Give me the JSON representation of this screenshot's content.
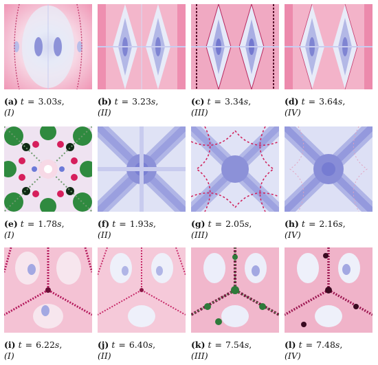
{
  "figures": [
    {
      "label": "(a)",
      "time": "3.03",
      "phase": "(I)",
      "scheme": "pink-radial"
    },
    {
      "label": "(b)",
      "time": "3.23",
      "phase": "(II)",
      "scheme": "pink-diamond"
    },
    {
      "label": "(c)",
      "time": "3.34",
      "phase": "(III)",
      "scheme": "pink-diamond-dark"
    },
    {
      "label": "(d)",
      "time": "3.64",
      "phase": "(IV)",
      "scheme": "pink-diamond"
    },
    {
      "label": "(e)",
      "time": "1.78",
      "phase": "(I)",
      "scheme": "green-star"
    },
    {
      "label": "(f)",
      "time": "1.93",
      "phase": "(II)",
      "scheme": "blue-x"
    },
    {
      "label": "(g)",
      "time": "2.05",
      "phase": "(III)",
      "scheme": "blue-x-red"
    },
    {
      "label": "(h)",
      "time": "2.16",
      "phase": "(IV)",
      "scheme": "blue-x"
    },
    {
      "label": "(i)",
      "time": "6.22",
      "phase": "(I)",
      "scheme": "pink-tri"
    },
    {
      "label": "(j)",
      "time": "6.40",
      "phase": "(II)",
      "scheme": "pink-tri-light"
    },
    {
      "label": "(k)",
      "time": "7.54",
      "phase": "(III)",
      "scheme": "pink-tri-green"
    },
    {
      "label": "(l)",
      "time": "7.48",
      "phase": "(IV)",
      "scheme": "pink-tri"
    }
  ],
  "caption_text": {
    "t": "t",
    "eq": "=",
    "unit": "s",
    "comma": ","
  }
}
